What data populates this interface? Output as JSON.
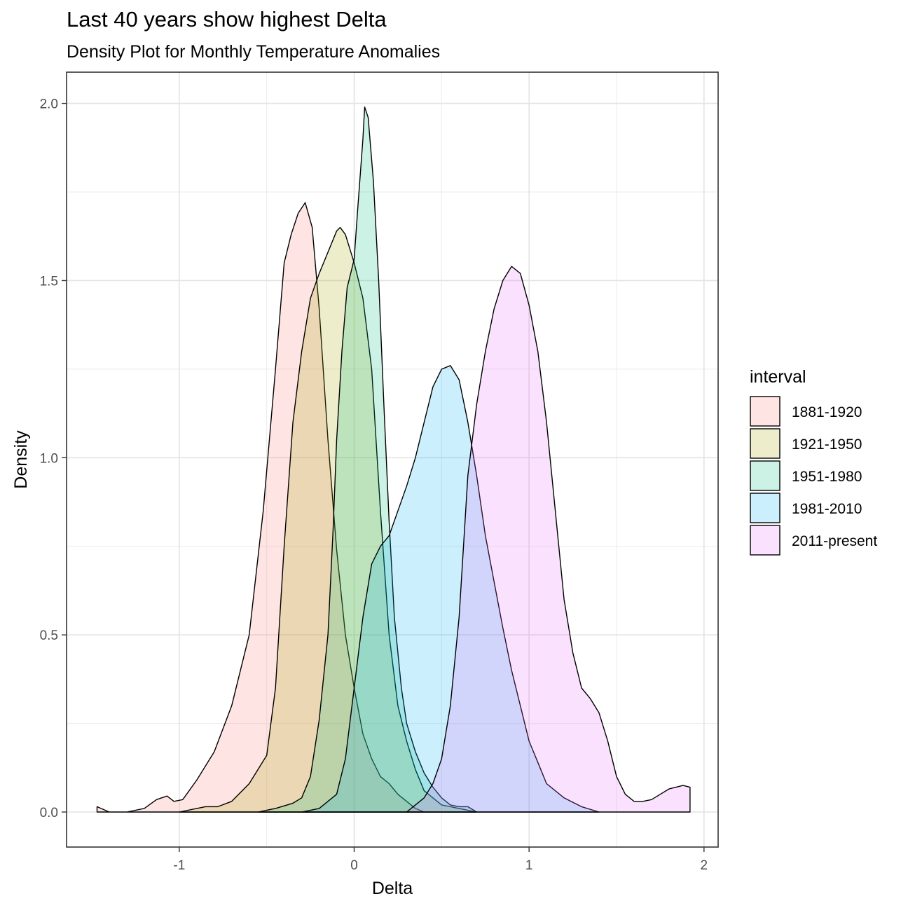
{
  "chart_data": {
    "type": "area",
    "title": "Last 40 years show highest Delta",
    "subtitle": "Density Plot for Monthly Temperature Anomalies",
    "xlabel": "Delta",
    "ylabel": "Density",
    "xlim": [
      -1.5,
      2.0
    ],
    "ylim": [
      -0.1,
      2.1
    ],
    "x_ticks": [
      -1,
      0,
      1,
      2
    ],
    "x_tick_labels": [
      "-1",
      "0",
      "1",
      "2"
    ],
    "y_ticks": [
      0.0,
      0.5,
      1.0,
      1.5,
      2.0
    ],
    "y_tick_labels": [
      "0.0",
      "0.5",
      "1.0",
      "1.5",
      "2.0"
    ],
    "grid": true,
    "legend": {
      "title": "interval",
      "position": "right"
    },
    "series": [
      {
        "name": "1881-1920",
        "color": "#F8766D",
        "points": [
          [
            -1.47,
            0.015
          ],
          [
            -1.4,
            0.0
          ],
          [
            -1.3,
            0.0
          ],
          [
            -1.2,
            0.01
          ],
          [
            -1.13,
            0.035
          ],
          [
            -1.07,
            0.045
          ],
          [
            -1.03,
            0.03
          ],
          [
            -0.98,
            0.035
          ],
          [
            -0.9,
            0.09
          ],
          [
            -0.8,
            0.17
          ],
          [
            -0.7,
            0.3
          ],
          [
            -0.6,
            0.5
          ],
          [
            -0.52,
            0.85
          ],
          [
            -0.45,
            1.25
          ],
          [
            -0.4,
            1.55
          ],
          [
            -0.36,
            1.63
          ],
          [
            -0.32,
            1.69
          ],
          [
            -0.28,
            1.72
          ],
          [
            -0.24,
            1.65
          ],
          [
            -0.2,
            1.42
          ],
          [
            -0.15,
            1.05
          ],
          [
            -0.1,
            0.74
          ],
          [
            -0.05,
            0.5
          ],
          [
            0.0,
            0.35
          ],
          [
            0.05,
            0.22
          ],
          [
            0.1,
            0.15
          ],
          [
            0.15,
            0.1
          ],
          [
            0.2,
            0.08
          ],
          [
            0.25,
            0.05
          ],
          [
            0.3,
            0.03
          ],
          [
            0.35,
            0.01
          ],
          [
            0.4,
            0.0
          ]
        ]
      },
      {
        "name": "1921-1950",
        "color": "#A3A500",
        "points": [
          [
            -1.0,
            0.0
          ],
          [
            -0.9,
            0.01
          ],
          [
            -0.85,
            0.015
          ],
          [
            -0.78,
            0.015
          ],
          [
            -0.7,
            0.03
          ],
          [
            -0.6,
            0.08
          ],
          [
            -0.5,
            0.16
          ],
          [
            -0.45,
            0.35
          ],
          [
            -0.4,
            0.75
          ],
          [
            -0.35,
            1.1
          ],
          [
            -0.3,
            1.3
          ],
          [
            -0.25,
            1.45
          ],
          [
            -0.2,
            1.52
          ],
          [
            -0.15,
            1.58
          ],
          [
            -0.1,
            1.64
          ],
          [
            -0.08,
            1.65
          ],
          [
            -0.05,
            1.63
          ],
          [
            0.0,
            1.55
          ],
          [
            0.05,
            1.45
          ],
          [
            0.1,
            1.25
          ],
          [
            0.15,
            0.85
          ],
          [
            0.2,
            0.5
          ],
          [
            0.25,
            0.3
          ],
          [
            0.3,
            0.2
          ],
          [
            0.35,
            0.12
          ],
          [
            0.4,
            0.06
          ],
          [
            0.45,
            0.04
          ],
          [
            0.5,
            0.02
          ],
          [
            0.6,
            0.01
          ],
          [
            0.7,
            0.0
          ]
        ]
      },
      {
        "name": "1951-1980",
        "color": "#00BF7D",
        "points": [
          [
            -0.55,
            0.0
          ],
          [
            -0.45,
            0.01
          ],
          [
            -0.35,
            0.025
          ],
          [
            -0.3,
            0.04
          ],
          [
            -0.25,
            0.1
          ],
          [
            -0.2,
            0.26
          ],
          [
            -0.15,
            0.5
          ],
          [
            -0.12,
            0.8
          ],
          [
            -0.1,
            1.05
          ],
          [
            -0.07,
            1.3
          ],
          [
            -0.04,
            1.48
          ],
          [
            0.0,
            1.56
          ],
          [
            0.02,
            1.7
          ],
          [
            0.05,
            1.9
          ],
          [
            0.06,
            1.99
          ],
          [
            0.08,
            1.96
          ],
          [
            0.11,
            1.78
          ],
          [
            0.14,
            1.5
          ],
          [
            0.17,
            1.15
          ],
          [
            0.2,
            0.82
          ],
          [
            0.23,
            0.55
          ],
          [
            0.27,
            0.35
          ],
          [
            0.3,
            0.25
          ],
          [
            0.35,
            0.17
          ],
          [
            0.4,
            0.11
          ],
          [
            0.45,
            0.07
          ],
          [
            0.5,
            0.04
          ],
          [
            0.55,
            0.02
          ],
          [
            0.6,
            0.015
          ],
          [
            0.65,
            0.015
          ],
          [
            0.7,
            0.0
          ]
        ]
      },
      {
        "name": "1981-2010",
        "color": "#00B0F6",
        "points": [
          [
            -0.3,
            0.0
          ],
          [
            -0.2,
            0.01
          ],
          [
            -0.1,
            0.05
          ],
          [
            -0.05,
            0.15
          ],
          [
            0.0,
            0.35
          ],
          [
            0.05,
            0.55
          ],
          [
            0.1,
            0.7
          ],
          [
            0.15,
            0.75
          ],
          [
            0.2,
            0.78
          ],
          [
            0.25,
            0.85
          ],
          [
            0.3,
            0.92
          ],
          [
            0.35,
            1.0
          ],
          [
            0.4,
            1.1
          ],
          [
            0.45,
            1.2
          ],
          [
            0.5,
            1.25
          ],
          [
            0.55,
            1.26
          ],
          [
            0.6,
            1.22
          ],
          [
            0.65,
            1.1
          ],
          [
            0.7,
            0.95
          ],
          [
            0.75,
            0.78
          ],
          [
            0.8,
            0.65
          ],
          [
            0.85,
            0.52
          ],
          [
            0.9,
            0.4
          ],
          [
            0.95,
            0.3
          ],
          [
            1.0,
            0.2
          ],
          [
            1.05,
            0.14
          ],
          [
            1.1,
            0.08
          ],
          [
            1.2,
            0.04
          ],
          [
            1.3,
            0.015
          ],
          [
            1.4,
            0.0
          ]
        ]
      },
      {
        "name": "2011-present",
        "color": "#E76BF3",
        "points": [
          [
            0.3,
            0.0
          ],
          [
            0.35,
            0.02
          ],
          [
            0.4,
            0.04
          ],
          [
            0.45,
            0.08
          ],
          [
            0.5,
            0.15
          ],
          [
            0.55,
            0.3
          ],
          [
            0.6,
            0.55
          ],
          [
            0.65,
            0.95
          ],
          [
            0.7,
            1.15
          ],
          [
            0.75,
            1.3
          ],
          [
            0.8,
            1.42
          ],
          [
            0.85,
            1.5
          ],
          [
            0.9,
            1.54
          ],
          [
            0.95,
            1.52
          ],
          [
            1.0,
            1.43
          ],
          [
            1.05,
            1.3
          ],
          [
            1.1,
            1.1
          ],
          [
            1.15,
            0.85
          ],
          [
            1.2,
            0.6
          ],
          [
            1.25,
            0.45
          ],
          [
            1.3,
            0.35
          ],
          [
            1.35,
            0.32
          ],
          [
            1.4,
            0.28
          ],
          [
            1.45,
            0.2
          ],
          [
            1.5,
            0.1
          ],
          [
            1.55,
            0.05
          ],
          [
            1.6,
            0.03
          ],
          [
            1.65,
            0.03
          ],
          [
            1.7,
            0.035
          ],
          [
            1.75,
            0.05
          ],
          [
            1.8,
            0.065
          ],
          [
            1.88,
            0.075
          ],
          [
            1.92,
            0.07
          ],
          [
            1.92,
            0.0
          ]
        ]
      }
    ]
  }
}
